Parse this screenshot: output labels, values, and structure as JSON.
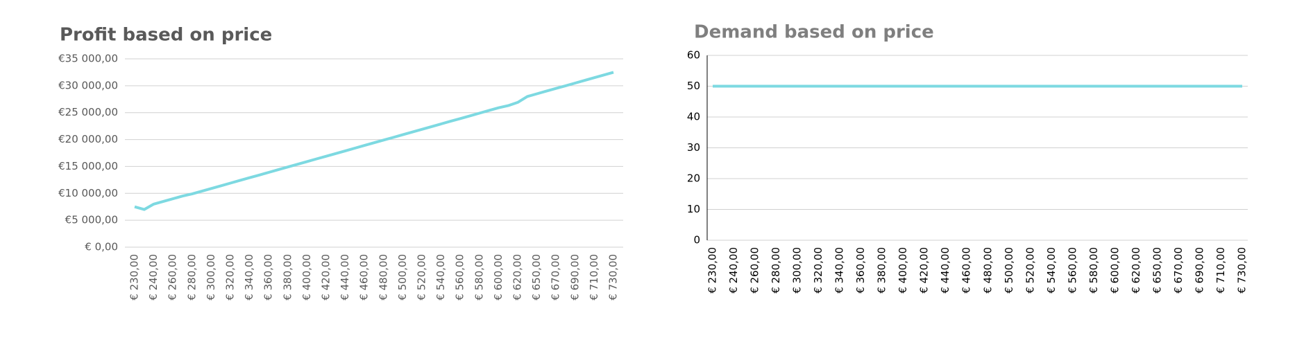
{
  "chart_data": [
    {
      "type": "line",
      "title": "Profit based on price",
      "title_color": "#595959",
      "categories": [
        "€ 230,00",
        null,
        "€ 240,00",
        null,
        "€ 260,00",
        null,
        "€ 280,00",
        null,
        "€ 300,00",
        null,
        "€ 320,00",
        null,
        "€ 340,00",
        null,
        "€ 360,00",
        null,
        "€ 380,00",
        null,
        "€ 400,00",
        null,
        "€ 420,00",
        null,
        "€ 440,00",
        null,
        "€ 460,00",
        null,
        "€ 480,00",
        null,
        "€ 500,00",
        null,
        "€ 520,00",
        null,
        "€ 540,00",
        null,
        "€ 560,00",
        null,
        "€ 580,00",
        null,
        "€ 600,00",
        null,
        "€ 620,00",
        null,
        "€ 650,00",
        null,
        "€ 670,00",
        null,
        "€ 690,00",
        null,
        "€ 710,00",
        null,
        "€ 730,00"
      ],
      "series": [
        {
          "name": "Profit",
          "color": "#7dd9e1",
          "values": [
            7500,
            7000,
            8000,
            8500,
            9000,
            9500,
            9900,
            10400,
            10900,
            11400,
            11900,
            12400,
            12900,
            13400,
            13900,
            14400,
            14900,
            15400,
            15900,
            16400,
            16900,
            17400,
            17900,
            18400,
            18900,
            19400,
            19900,
            20400,
            20900,
            21400,
            21900,
            22400,
            22900,
            23400,
            23900,
            24400,
            24900,
            25400,
            25900,
            26300,
            26900,
            28000,
            28500,
            29000,
            29500,
            30000,
            30500,
            31000,
            31500,
            32000,
            32500
          ]
        }
      ],
      "ylim": [
        0,
        35000
      ],
      "yticks": [
        {
          "value": 0,
          "label": "€ 0,00"
        },
        {
          "value": 5000,
          "label": "€5 000,00"
        },
        {
          "value": 10000,
          "label": "€10 000,00"
        },
        {
          "value": 15000,
          "label": "€15 000,00"
        },
        {
          "value": 20000,
          "label": "€20 000,00"
        },
        {
          "value": 25000,
          "label": "€25 000,00"
        },
        {
          "value": 30000,
          "label": "€30 000,00"
        },
        {
          "value": 35000,
          "label": "€35 000,00"
        }
      ],
      "grid": true
    },
    {
      "type": "line",
      "title": "Demand based on price",
      "title_color": "#7f7f7f",
      "categories": [
        "€ 230,00",
        null,
        "€ 240,00",
        null,
        "€ 260,00",
        null,
        "€ 280,00",
        null,
        "€ 300,00",
        null,
        "€ 320,00",
        null,
        "€ 340,00",
        null,
        "€ 360,00",
        null,
        "€ 380,00",
        null,
        "€ 400,00",
        null,
        "€ 420,00",
        null,
        "€ 440,00",
        null,
        "€ 460,00",
        null,
        "€ 480,00",
        null,
        "€ 500,00",
        null,
        "€ 520,00",
        null,
        "€ 540,00",
        null,
        "€ 560,00",
        null,
        "€ 580,00",
        null,
        "€ 600,00",
        null,
        "€ 620,00",
        null,
        "€ 650,00",
        null,
        "€ 670,00",
        null,
        "€ 690,00",
        null,
        "€ 710,00",
        null,
        "€ 730,00"
      ],
      "series": [
        {
          "name": "Demand",
          "color": "#7dd9e1",
          "values": [
            50,
            50,
            50,
            50,
            50,
            50,
            50,
            50,
            50,
            50,
            50,
            50,
            50,
            50,
            50,
            50,
            50,
            50,
            50,
            50,
            50,
            50,
            50,
            50,
            50,
            50,
            50,
            50,
            50,
            50,
            50,
            50,
            50,
            50,
            50,
            50,
            50,
            50,
            50,
            50,
            50,
            50,
            50,
            50,
            50,
            50,
            50,
            50,
            50,
            50,
            50
          ]
        }
      ],
      "ylim": [
        0,
        60
      ],
      "yticks": [
        0,
        10,
        20,
        30,
        40,
        50,
        60
      ],
      "grid": true,
      "axis_line": true
    }
  ]
}
